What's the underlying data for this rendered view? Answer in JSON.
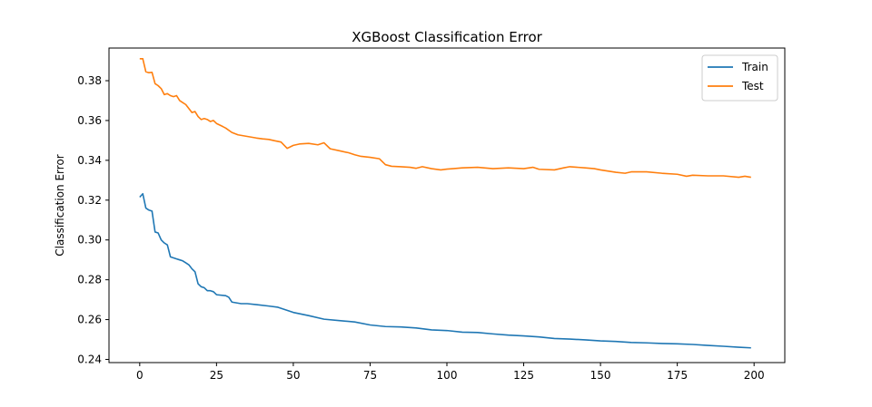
{
  "chart_data": {
    "type": "line",
    "title": "XGBoost Classification Error",
    "xlabel": "",
    "ylabel": "Classification Error",
    "xlim": [
      -10,
      210
    ],
    "ylim": [
      0.2384,
      0.3964
    ],
    "xticks": [
      0,
      25,
      50,
      75,
      100,
      125,
      150,
      175,
      200
    ],
    "yticks": [
      0.24,
      0.26,
      0.28,
      0.3,
      0.32,
      0.34,
      0.36,
      0.38
    ],
    "ytick_labels": [
      "0.24",
      "0.26",
      "0.28",
      "0.30",
      "0.32",
      "0.34",
      "0.36",
      "0.38"
    ],
    "grid": false,
    "legend_position": "top-right",
    "series": [
      {
        "name": "Train",
        "color": "#1f77b4",
        "points": [
          [
            0,
            0.3215
          ],
          [
            1,
            0.3232
          ],
          [
            2,
            0.316
          ],
          [
            3,
            0.315
          ],
          [
            4,
            0.3145
          ],
          [
            5,
            0.304
          ],
          [
            6,
            0.3035
          ],
          [
            7,
            0.3
          ],
          [
            8,
            0.2985
          ],
          [
            9,
            0.2975
          ],
          [
            10,
            0.2915
          ],
          [
            11,
            0.291
          ],
          [
            12,
            0.2905
          ],
          [
            13,
            0.29
          ],
          [
            14,
            0.2895
          ],
          [
            15,
            0.2885
          ],
          [
            16,
            0.2875
          ],
          [
            17,
            0.2855
          ],
          [
            18,
            0.284
          ],
          [
            19,
            0.278
          ],
          [
            20,
            0.2765
          ],
          [
            21,
            0.276
          ],
          [
            22,
            0.2745
          ],
          [
            23,
            0.2745
          ],
          [
            24,
            0.274
          ],
          [
            25,
            0.2725
          ],
          [
            28,
            0.272
          ],
          [
            29,
            0.2712
          ],
          [
            30,
            0.2688
          ],
          [
            33,
            0.268
          ],
          [
            35,
            0.268
          ],
          [
            38,
            0.2675
          ],
          [
            42,
            0.2668
          ],
          [
            45,
            0.2662
          ],
          [
            50,
            0.2636
          ],
          [
            55,
            0.262
          ],
          [
            60,
            0.2602
          ],
          [
            65,
            0.2595
          ],
          [
            70,
            0.2588
          ],
          [
            75,
            0.2573
          ],
          [
            80,
            0.2565
          ],
          [
            85,
            0.2563
          ],
          [
            90,
            0.2558
          ],
          [
            95,
            0.2548
          ],
          [
            100,
            0.2545
          ],
          [
            105,
            0.2537
          ],
          [
            110,
            0.2535
          ],
          [
            115,
            0.2528
          ],
          [
            120,
            0.2522
          ],
          [
            125,
            0.2518
          ],
          [
            130,
            0.2513
          ],
          [
            135,
            0.2505
          ],
          [
            140,
            0.2502
          ],
          [
            145,
            0.2498
          ],
          [
            150,
            0.2493
          ],
          [
            155,
            0.249
          ],
          [
            160,
            0.2485
          ],
          [
            165,
            0.2483
          ],
          [
            170,
            0.248
          ],
          [
            175,
            0.2478
          ],
          [
            180,
            0.2475
          ],
          [
            185,
            0.247
          ],
          [
            190,
            0.2466
          ],
          [
            195,
            0.2461
          ],
          [
            199,
            0.2458
          ]
        ]
      },
      {
        "name": "Test",
        "color": "#ff7f0e",
        "points": [
          [
            0,
            0.391
          ],
          [
            1,
            0.391
          ],
          [
            2,
            0.3845
          ],
          [
            3,
            0.384
          ],
          [
            4,
            0.3842
          ],
          [
            5,
            0.3785
          ],
          [
            6,
            0.3775
          ],
          [
            7,
            0.376
          ],
          [
            8,
            0.373
          ],
          [
            9,
            0.3735
          ],
          [
            10,
            0.3725
          ],
          [
            11,
            0.372
          ],
          [
            12,
            0.3725
          ],
          [
            13,
            0.37
          ],
          [
            14,
            0.369
          ],
          [
            15,
            0.368
          ],
          [
            16,
            0.366
          ],
          [
            17,
            0.364
          ],
          [
            18,
            0.3645
          ],
          [
            19,
            0.362
          ],
          [
            20,
            0.3605
          ],
          [
            21,
            0.361
          ],
          [
            22,
            0.3605
          ],
          [
            23,
            0.3595
          ],
          [
            24,
            0.36
          ],
          [
            25,
            0.3585
          ],
          [
            27,
            0.357
          ],
          [
            28,
            0.3562
          ],
          [
            30,
            0.354
          ],
          [
            32,
            0.3528
          ],
          [
            35,
            0.352
          ],
          [
            38,
            0.3512
          ],
          [
            40,
            0.3508
          ],
          [
            42,
            0.3505
          ],
          [
            44,
            0.3498
          ],
          [
            46,
            0.3492
          ],
          [
            48,
            0.346
          ],
          [
            50,
            0.3475
          ],
          [
            52,
            0.3482
          ],
          [
            55,
            0.3485
          ],
          [
            58,
            0.3478
          ],
          [
            60,
            0.3488
          ],
          [
            62,
            0.3458
          ],
          [
            65,
            0.3448
          ],
          [
            68,
            0.3438
          ],
          [
            70,
            0.3428
          ],
          [
            72,
            0.342
          ],
          [
            75,
            0.3415
          ],
          [
            78,
            0.3408
          ],
          [
            80,
            0.3378
          ],
          [
            82,
            0.337
          ],
          [
            85,
            0.3368
          ],
          [
            88,
            0.3365
          ],
          [
            90,
            0.336
          ],
          [
            92,
            0.3368
          ],
          [
            95,
            0.3358
          ],
          [
            98,
            0.3352
          ],
          [
            100,
            0.3356
          ],
          [
            102,
            0.3358
          ],
          [
            105,
            0.3362
          ],
          [
            110,
            0.3365
          ],
          [
            115,
            0.3358
          ],
          [
            120,
            0.3362
          ],
          [
            125,
            0.3358
          ],
          [
            128,
            0.3365
          ],
          [
            130,
            0.3355
          ],
          [
            135,
            0.3352
          ],
          [
            138,
            0.3362
          ],
          [
            140,
            0.3368
          ],
          [
            145,
            0.3362
          ],
          [
            148,
            0.3358
          ],
          [
            150,
            0.3352
          ],
          [
            155,
            0.334
          ],
          [
            158,
            0.3335
          ],
          [
            160,
            0.3342
          ],
          [
            165,
            0.3342
          ],
          [
            170,
            0.3335
          ],
          [
            175,
            0.333
          ],
          [
            178,
            0.332
          ],
          [
            180,
            0.3325
          ],
          [
            185,
            0.3322
          ],
          [
            190,
            0.3322
          ],
          [
            195,
            0.3315
          ],
          [
            197,
            0.332
          ],
          [
            199,
            0.3315
          ]
        ]
      }
    ]
  }
}
